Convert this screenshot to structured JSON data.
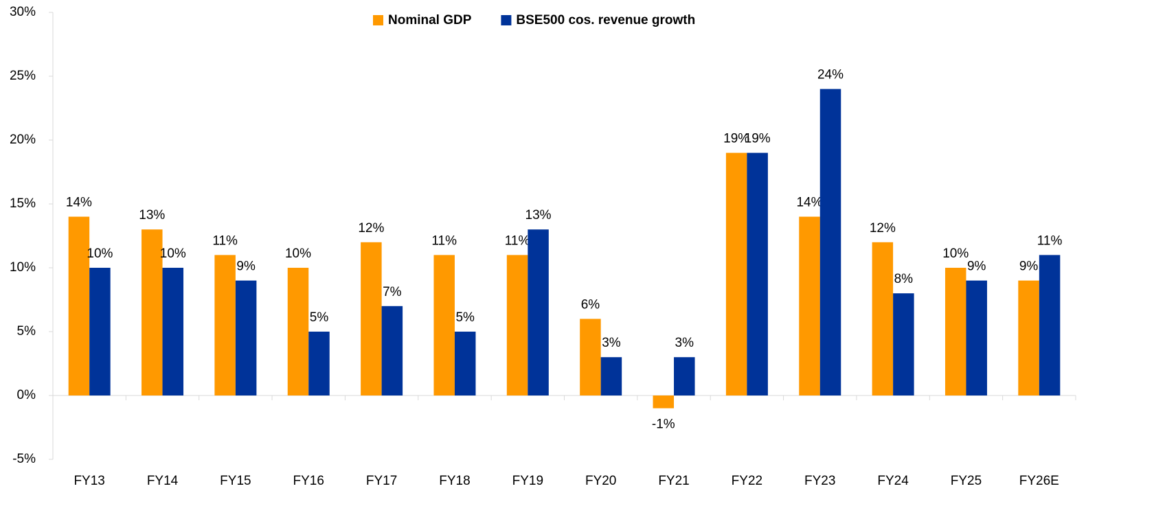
{
  "chart_data": {
    "type": "bar",
    "categories": [
      "FY13",
      "FY14",
      "FY15",
      "FY16",
      "FY17",
      "FY18",
      "FY19",
      "FY20",
      "FY21",
      "FY22",
      "FY23",
      "FY24",
      "FY25",
      "FY26E"
    ],
    "series": [
      {
        "name": "Nominal GDP",
        "color": "#ff9900",
        "values": [
          14,
          13,
          11,
          10,
          12,
          11,
          11,
          6,
          -1,
          19,
          14,
          12,
          10,
          9
        ],
        "value_labels": [
          "14%",
          "13%",
          "11%",
          "10%",
          "12%",
          "11%",
          "11%",
          "6%",
          "-1%",
          "19%",
          "14%",
          "12%",
          "10%",
          "9%"
        ]
      },
      {
        "name": "BSE500 cos. revenue growth",
        "color": "#003399",
        "values": [
          10,
          10,
          9,
          5,
          7,
          5,
          13,
          3,
          3,
          19,
          24,
          8,
          9,
          11
        ],
        "value_labels": [
          "10%",
          "10%",
          "9%",
          "5%",
          "7%",
          "5%",
          "13%",
          "3%",
          "3%",
          "19%",
          "24%",
          "8%",
          "9%",
          "11%"
        ]
      }
    ],
    "ylim": [
      -5,
      30
    ],
    "yticks": [
      {
        "value": -5,
        "label": "-5%"
      },
      {
        "value": 0,
        "label": "0%"
      },
      {
        "value": 5,
        "label": "5%"
      },
      {
        "value": 10,
        "label": "10%"
      },
      {
        "value": 15,
        "label": "15%"
      },
      {
        "value": 20,
        "label": "20%"
      },
      {
        "value": 25,
        "label": "25%"
      },
      {
        "value": 30,
        "label": "30%"
      }
    ],
    "legend": "top"
  }
}
